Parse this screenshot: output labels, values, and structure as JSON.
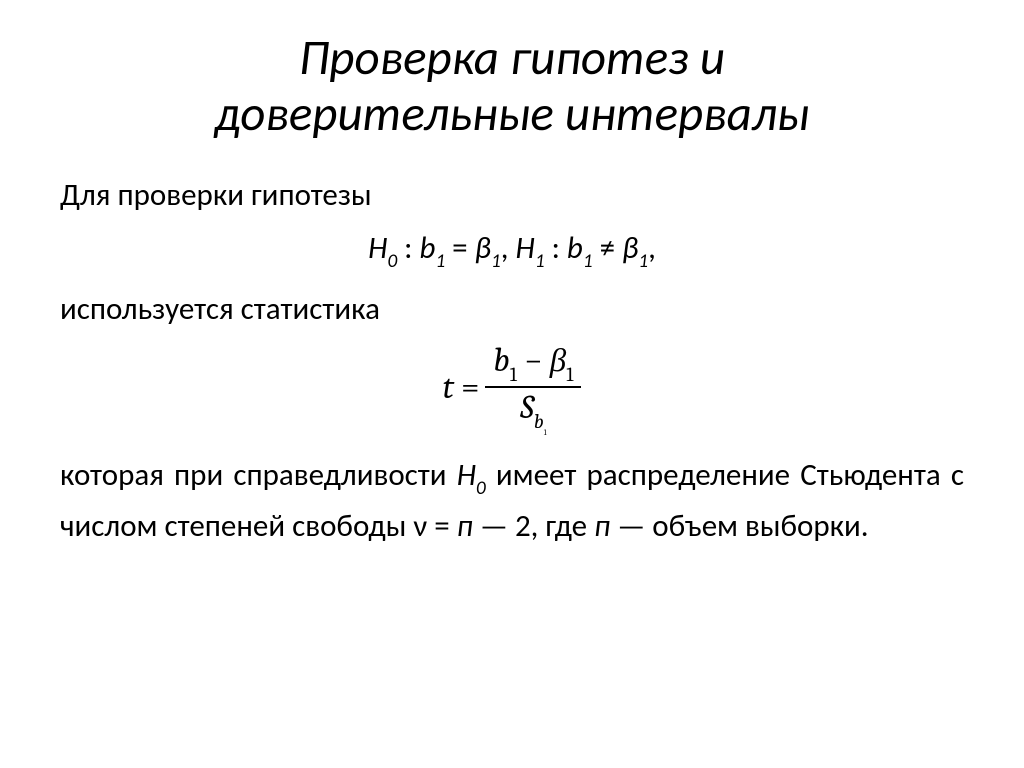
{
  "colors": {
    "background": "#ffffff",
    "text": "#000000",
    "rule": "#000000"
  },
  "typography": {
    "title_family": "Calibri",
    "title_size_pt": 40,
    "title_style": "italic",
    "body_family": "Calibri",
    "body_size_pt": 24,
    "formula_family": "Cambria",
    "formula_size_pt": 26
  },
  "title": {
    "line1": "Проверка гипотез и",
    "line2": "доверительные интервалы"
  },
  "p1": "Для проверки гипотезы",
  "hypothesis": {
    "h0_label": "H",
    "h0_sub": "0",
    "colon_sp": " : ",
    "b_label": "b",
    "one": "1",
    "eq": " = ",
    "beta_label": "β",
    "comma_sp": ", ",
    "h1_label": "H",
    "h1_sub": "1",
    "neq": " ≠ "
  },
  "p2": "используется статистика",
  "formula": {
    "t": "t",
    "equals": " = ",
    "b": "b",
    "one": "1",
    "minus": " − ",
    "beta": "β",
    "S": "S",
    "s_sub_b": "b",
    "s_sub_one": "1"
  },
  "p3": {
    "t1": "которая при справедливости ",
    "h_label": "H",
    "h_sub": "0",
    "t2": " имеет распределение Стьюдента с числом степеней свободы ν = ",
    "n_ital": "п",
    "t3": " — 2, где ",
    "n_ital2": "п",
    "t4": " — объем выборки."
  }
}
